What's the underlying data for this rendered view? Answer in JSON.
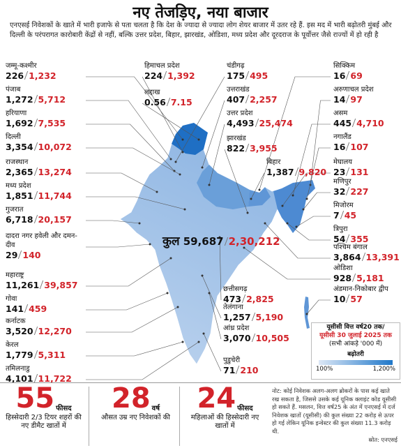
{
  "header": {
    "title": "नए तेजड़िए, नया बाजार",
    "intro": "एनएसई निवेशकों के खाते में भारी इजाफे से पता चलता है कि देश के ज्यादा से ज्यादा लोग शेयर बाजार में उतर रहे हैं. इस मद में भारी बढ़ोतरी मुंबई और दिल्ली के परंपरागत कारोबारी केंद्रों से नहीं, बल्कि उत्तर प्रदेश, बिहार, झारखंड, ओडिशा, मध्य प्रदेश और दूरदराज के पूर्वोत्तर जैसे राज्यों में हो रही है"
  },
  "map": {
    "total": {
      "name": "कुल",
      "old": "59,687",
      "new": "2,30,212"
    },
    "regions": [
      {
        "name": "जम्मू-कश्मीर",
        "old": "226",
        "new": "1,232"
      },
      {
        "name": "पंजाब",
        "old": "1,272",
        "new": "5,712"
      },
      {
        "name": "हरियाणा",
        "old": "1,692",
        "new": "7,535"
      },
      {
        "name": "दिल्ली",
        "old": "3,354",
        "new": "10,072"
      },
      {
        "name": "राजस्थान",
        "old": "2,365",
        "new": "13,274"
      },
      {
        "name": "मध्य प्रदेश",
        "old": "1,851",
        "new": "11,744"
      },
      {
        "name": "गुजरात",
        "old": "6,718",
        "new": "20,157"
      },
      {
        "name": "दादरा नगर हवेली और दमन-दीव",
        "old": "29",
        "new": "140"
      },
      {
        "name": "महाराष्ट्र",
        "old": "11,261",
        "new": "39,857"
      },
      {
        "name": "गोवा",
        "old": "141",
        "new": "459"
      },
      {
        "name": "कर्नाटक",
        "old": "3,520",
        "new": "12,270"
      },
      {
        "name": "केरल",
        "old": "1,779",
        "new": "5,311"
      },
      {
        "name": "तमिलनाडु",
        "old": "4,101",
        "new": "11,722"
      },
      {
        "name": "हिमाचल प्रदेश",
        "old": "224",
        "new": "1,392"
      },
      {
        "name": "लद्दाख",
        "old": "0.56",
        "new": "7.15"
      },
      {
        "name": "चंडीगढ़",
        "old": "175",
        "new": "495"
      },
      {
        "name": "उत्तराखंड",
        "old": "407",
        "new": "2,257"
      },
      {
        "name": "उत्तर प्रदेश",
        "old": "4,493",
        "new": "25,474"
      },
      {
        "name": "झारखंड",
        "old": "822",
        "new": "3,955"
      },
      {
        "name": "बिहार",
        "old": "1,387",
        "new": "9,820"
      },
      {
        "name": "सिक्किम",
        "old": "16",
        "new": "69"
      },
      {
        "name": "अरुणाचल प्रदेश",
        "old": "14",
        "new": "97"
      },
      {
        "name": "असम",
        "old": "445",
        "new": "4,710"
      },
      {
        "name": "नगालैंड",
        "old": "16",
        "new": "107"
      },
      {
        "name": "मेघालय",
        "old": "23",
        "new": "131"
      },
      {
        "name": "मणिपुर",
        "old": "32",
        "new": "227"
      },
      {
        "name": "मिजोरम",
        "old": "7",
        "new": "45"
      },
      {
        "name": "त्रिपुरा",
        "old": "54",
        "new": "355"
      },
      {
        "name": "पश्चिम बंगाल",
        "old": "3,864",
        "new": "13,391"
      },
      {
        "name": "ओडिशा",
        "old": "928",
        "new": "5,181"
      },
      {
        "name": "अंडमान-निकोबार द्वीप",
        "old": "10",
        "new": "57"
      },
      {
        "name": "छत्तीसगढ़",
        "old": "473",
        "new": "2,825"
      },
      {
        "name": "तेलंगाना",
        "old": "1,257",
        "new": "5,190"
      },
      {
        "name": "आंध्र प्रदेश",
        "old": "3,070",
        "new": "10,505"
      },
      {
        "name": "पुडुचेरी",
        "old": "71",
        "new": "210"
      }
    ]
  },
  "legend": {
    "title_line1": "यूसीसी वित्त वर्ष20 तक/",
    "title_line2": "यूसीसी 30 जुलाई 2025 तक",
    "note": "(सभी आंकड़े '000 में)",
    "label": "बढ़ोतरी",
    "min": "100%",
    "max": "1,200%"
  },
  "stats": [
    {
      "value": "55",
      "unit": "फीसद",
      "text": "हिस्सेदारी 2/3 टियर शहरों की नए डीमैट खातों में"
    },
    {
      "value": "28",
      "unit": "वर्ष",
      "text": "औसत उम्र नए निवेशकों की"
    },
    {
      "value": "24",
      "unit": "फीसद",
      "text": "महिलाओं की हिस्सेदारी नए खातों में"
    }
  ],
  "footnote": {
    "note": "नोट: कोई निवेशक अलग-अलग ब्रोकरों के पास कई खाते रख सकता है, जिससे उसके कई यूनिक क्लाइंट कोड यूसीसी हो सकते हैं. मसलन, वित्त वर्ष25 के अंत में एनएसई में दर्ज निवेशक खातों (यूसीसी) की कुल संख्या 22 करोड़ से ऊपर हो गई लेकिन यूनिक इन्वेस्टर की कुल संख्या 11.3 करोड़ थी.",
    "source": "स्रोत: एनएसई"
  }
}
